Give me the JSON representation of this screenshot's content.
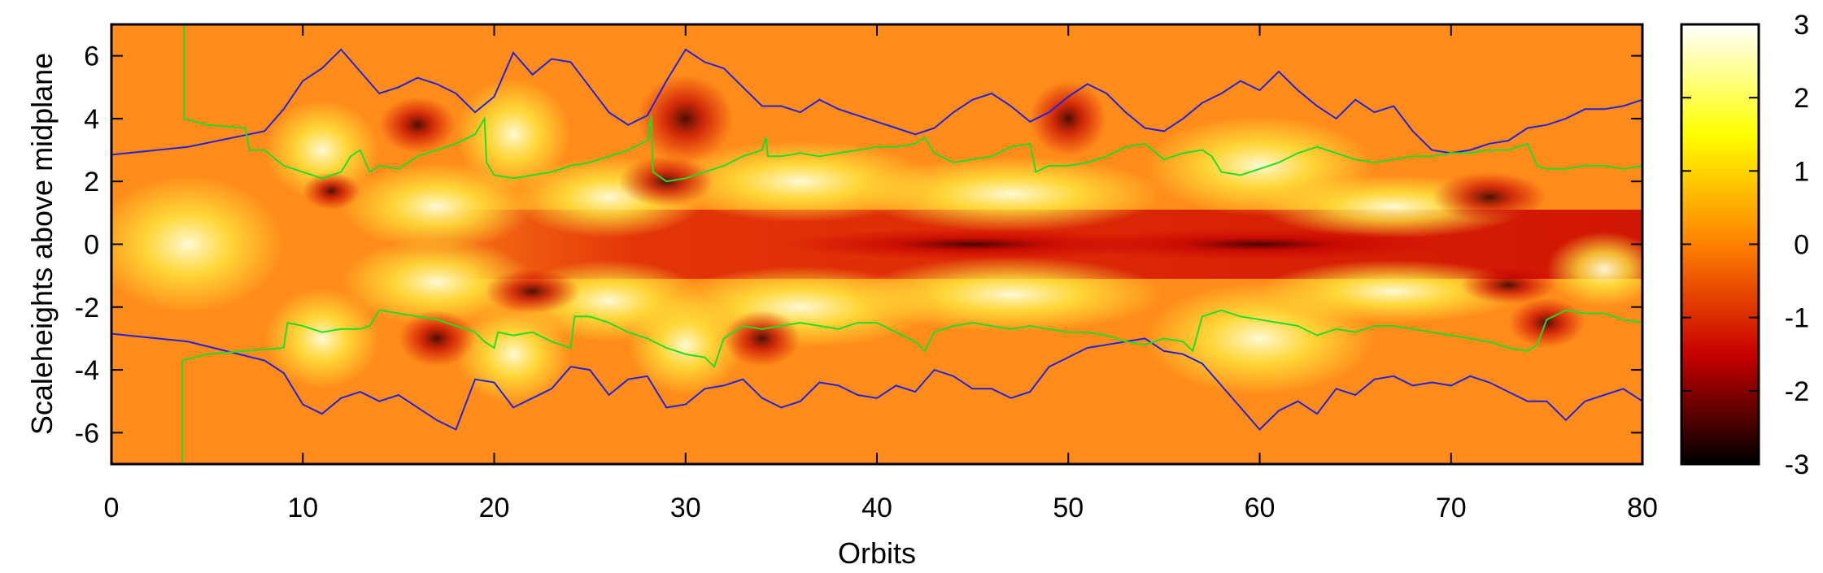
{
  "chart_data": {
    "type": "heatmap",
    "title": "",
    "xlabel": "Orbits",
    "ylabel": "Scaleheights above midplane",
    "xlim": [
      0,
      80
    ],
    "ylim": [
      -7,
      7
    ],
    "x_ticks": [
      "0",
      "10",
      "20",
      "30",
      "40",
      "50",
      "60",
      "70",
      "80"
    ],
    "y_ticks": [
      "6",
      "4",
      "2",
      "0",
      "-2",
      "-4",
      "-6"
    ],
    "colorbar": {
      "range": [
        -3,
        3
      ],
      "ticks": [
        "3",
        "2",
        "1",
        "0",
        "-1",
        "-2",
        "-3"
      ],
      "colormap": [
        "#000000",
        "#c80000",
        "#ff8000",
        "#ffff00",
        "#ffffff"
      ]
    },
    "background_color": "#ff8c1a",
    "series": [
      {
        "color": "#2222dd",
        "upper": [
          [
            0,
            2.85
          ],
          [
            4,
            3.1
          ],
          [
            8,
            3.6
          ],
          [
            9,
            4.3
          ],
          [
            10,
            5.2
          ],
          [
            11,
            5.6
          ],
          [
            12,
            6.2
          ],
          [
            13,
            5.5
          ],
          [
            14,
            4.8
          ],
          [
            15,
            5.0
          ],
          [
            16,
            5.3
          ],
          [
            17,
            5.1
          ],
          [
            18,
            4.8
          ],
          [
            19,
            4.2
          ],
          [
            20,
            4.7
          ],
          [
            21,
            6.1
          ],
          [
            22,
            5.4
          ],
          [
            23,
            5.9
          ],
          [
            24,
            5.8
          ],
          [
            25,
            5.0
          ],
          [
            26,
            4.2
          ],
          [
            27,
            3.8
          ],
          [
            28,
            4.1
          ],
          [
            29,
            5.2
          ],
          [
            30,
            6.2
          ],
          [
            31,
            5.8
          ],
          [
            32,
            5.6
          ],
          [
            33,
            5.0
          ],
          [
            34,
            4.4
          ],
          [
            35,
            4.4
          ],
          [
            36,
            4.2
          ],
          [
            37,
            4.6
          ],
          [
            38,
            4.3
          ],
          [
            39,
            4.1
          ],
          [
            40,
            3.9
          ],
          [
            41,
            3.7
          ],
          [
            42,
            3.5
          ],
          [
            43,
            3.7
          ],
          [
            44,
            4.2
          ],
          [
            45,
            4.6
          ],
          [
            46,
            4.8
          ],
          [
            47,
            4.4
          ],
          [
            48,
            3.9
          ],
          [
            49,
            4.2
          ],
          [
            50,
            4.7
          ],
          [
            51,
            5.1
          ],
          [
            52,
            4.8
          ],
          [
            53,
            4.2
          ],
          [
            54,
            3.7
          ],
          [
            55,
            3.6
          ],
          [
            56,
            4.0
          ],
          [
            57,
            4.5
          ],
          [
            58,
            4.8
          ],
          [
            59,
            5.2
          ],
          [
            60,
            4.9
          ],
          [
            61,
            5.5
          ],
          [
            62,
            4.9
          ],
          [
            63,
            4.4
          ],
          [
            64,
            4.0
          ],
          [
            65,
            4.6
          ],
          [
            66,
            4.2
          ],
          [
            67,
            4.4
          ],
          [
            68,
            3.6
          ],
          [
            69,
            3.0
          ],
          [
            70,
            2.9
          ],
          [
            71,
            3.0
          ],
          [
            72,
            3.2
          ],
          [
            73,
            3.3
          ],
          [
            74,
            3.7
          ],
          [
            75,
            3.8
          ],
          [
            76,
            4.0
          ],
          [
            77,
            4.3
          ],
          [
            78,
            4.3
          ],
          [
            79,
            4.4
          ],
          [
            80,
            4.6
          ]
        ],
        "lower": [
          [
            0,
            -2.85
          ],
          [
            4,
            -3.1
          ],
          [
            8,
            -3.7
          ],
          [
            9,
            -4.1
          ],
          [
            10,
            -5.1
          ],
          [
            11,
            -5.4
          ],
          [
            12,
            -4.9
          ],
          [
            13,
            -4.7
          ],
          [
            14,
            -5.0
          ],
          [
            15,
            -4.8
          ],
          [
            16,
            -5.2
          ],
          [
            17,
            -5.6
          ],
          [
            18,
            -5.9
          ],
          [
            19,
            -4.3
          ],
          [
            20,
            -4.4
          ],
          [
            21,
            -5.2
          ],
          [
            22,
            -4.9
          ],
          [
            23,
            -4.6
          ],
          [
            24,
            -3.9
          ],
          [
            25,
            -4.0
          ],
          [
            26,
            -4.8
          ],
          [
            27,
            -4.3
          ],
          [
            28,
            -4.2
          ],
          [
            29,
            -5.2
          ],
          [
            30,
            -5.1
          ],
          [
            31,
            -4.6
          ],
          [
            32,
            -4.5
          ],
          [
            33,
            -4.3
          ],
          [
            34,
            -4.9
          ],
          [
            35,
            -5.2
          ],
          [
            36,
            -5.0
          ],
          [
            37,
            -4.4
          ],
          [
            38,
            -4.5
          ],
          [
            39,
            -4.8
          ],
          [
            40,
            -4.9
          ],
          [
            41,
            -4.5
          ],
          [
            42,
            -4.7
          ],
          [
            43,
            -4.0
          ],
          [
            44,
            -4.2
          ],
          [
            45,
            -4.6
          ],
          [
            46,
            -4.6
          ],
          [
            47,
            -4.9
          ],
          [
            48,
            -4.7
          ],
          [
            49,
            -3.9
          ],
          [
            50,
            -3.6
          ],
          [
            51,
            -3.3
          ],
          [
            52,
            -3.2
          ],
          [
            53,
            -3.1
          ],
          [
            54,
            -3.0
          ],
          [
            55,
            -3.4
          ],
          [
            56,
            -3.5
          ],
          [
            57,
            -3.8
          ],
          [
            58,
            -4.5
          ],
          [
            59,
            -5.2
          ],
          [
            60,
            -5.9
          ],
          [
            61,
            -5.3
          ],
          [
            62,
            -5.0
          ],
          [
            63,
            -5.4
          ],
          [
            64,
            -4.6
          ],
          [
            65,
            -4.8
          ],
          [
            66,
            -4.3
          ],
          [
            67,
            -4.2
          ],
          [
            68,
            -4.5
          ],
          [
            69,
            -4.4
          ],
          [
            70,
            -4.5
          ],
          [
            71,
            -4.2
          ],
          [
            72,
            -4.4
          ],
          [
            73,
            -4.7
          ],
          [
            74,
            -5.0
          ],
          [
            75,
            -5.0
          ],
          [
            76,
            -5.6
          ],
          [
            77,
            -5.0
          ],
          [
            78,
            -4.8
          ],
          [
            79,
            -4.6
          ],
          [
            80,
            -5.0
          ]
        ]
      },
      {
        "color": "#22dd22",
        "upper": [
          [
            3.8,
            7.0
          ],
          [
            3.8,
            4.0
          ],
          [
            5,
            3.8
          ],
          [
            7,
            3.7
          ],
          [
            7.2,
            3.0
          ],
          [
            8,
            3.0
          ],
          [
            9,
            2.5
          ],
          [
            10,
            2.3
          ],
          [
            11,
            2.1
          ],
          [
            12,
            2.3
          ],
          [
            12.5,
            2.8
          ],
          [
            13,
            3.0
          ],
          [
            13.5,
            2.3
          ],
          [
            14,
            2.5
          ],
          [
            15,
            2.4
          ],
          [
            16,
            2.8
          ],
          [
            17,
            3.0
          ],
          [
            18,
            3.2
          ],
          [
            19,
            3.5
          ],
          [
            19.5,
            4.0
          ],
          [
            19.6,
            2.6
          ],
          [
            20,
            2.2
          ],
          [
            21,
            2.1
          ],
          [
            22,
            2.2
          ],
          [
            23,
            2.3
          ],
          [
            24,
            2.5
          ],
          [
            25,
            2.6
          ],
          [
            26,
            2.8
          ],
          [
            27,
            3.0
          ],
          [
            28,
            3.3
          ],
          [
            28.2,
            4.1
          ],
          [
            28.3,
            2.3
          ],
          [
            29,
            2.0
          ],
          [
            30,
            2.1
          ],
          [
            31,
            2.3
          ],
          [
            32,
            2.5
          ],
          [
            33,
            2.8
          ],
          [
            34,
            3.0
          ],
          [
            34.2,
            3.4
          ],
          [
            34.3,
            2.8
          ],
          [
            35,
            2.8
          ],
          [
            36,
            2.9
          ],
          [
            37,
            2.8
          ],
          [
            38,
            2.9
          ],
          [
            39,
            3.0
          ],
          [
            40,
            3.1
          ],
          [
            41,
            3.1
          ],
          [
            42,
            3.2
          ],
          [
            42.5,
            3.4
          ],
          [
            43,
            2.9
          ],
          [
            44,
            2.6
          ],
          [
            45,
            2.7
          ],
          [
            46,
            2.8
          ],
          [
            47,
            3.1
          ],
          [
            48,
            3.2
          ],
          [
            48.3,
            2.3
          ],
          [
            49,
            2.5
          ],
          [
            50,
            2.5
          ],
          [
            51,
            2.6
          ],
          [
            52,
            2.8
          ],
          [
            53,
            3.1
          ],
          [
            54,
            3.2
          ],
          [
            55,
            2.7
          ],
          [
            56,
            2.9
          ],
          [
            57,
            3.0
          ],
          [
            57.5,
            2.8
          ],
          [
            58,
            2.3
          ],
          [
            59,
            2.2
          ],
          [
            60,
            2.4
          ],
          [
            61,
            2.6
          ],
          [
            62,
            2.9
          ],
          [
            63,
            3.1
          ],
          [
            64,
            2.9
          ],
          [
            65,
            2.7
          ],
          [
            66,
            2.6
          ],
          [
            67,
            2.7
          ],
          [
            68,
            2.8
          ],
          [
            69,
            2.8
          ],
          [
            70,
            2.9
          ],
          [
            71,
            2.9
          ],
          [
            72,
            3.0
          ],
          [
            73,
            3.0
          ],
          [
            74,
            3.2
          ],
          [
            74.5,
            2.5
          ],
          [
            75,
            2.4
          ],
          [
            76,
            2.4
          ],
          [
            77,
            2.5
          ],
          [
            78,
            2.5
          ],
          [
            79,
            2.4
          ],
          [
            80,
            2.5
          ]
        ],
        "lower": [
          [
            3.7,
            -7.0
          ],
          [
            3.7,
            -3.7
          ],
          [
            5,
            -3.5
          ],
          [
            7,
            -3.4
          ],
          [
            9,
            -3.3
          ],
          [
            9.2,
            -2.5
          ],
          [
            10,
            -2.6
          ],
          [
            11,
            -2.8
          ],
          [
            12,
            -2.7
          ],
          [
            13,
            -2.7
          ],
          [
            13.5,
            -2.6
          ],
          [
            14,
            -2.1
          ],
          [
            15,
            -2.2
          ],
          [
            16,
            -2.3
          ],
          [
            17,
            -2.4
          ],
          [
            18,
            -2.6
          ],
          [
            19,
            -2.8
          ],
          [
            19.5,
            -3.1
          ],
          [
            20,
            -3.3
          ],
          [
            20.2,
            -2.8
          ],
          [
            21,
            -2.9
          ],
          [
            22,
            -2.8
          ],
          [
            23,
            -3.1
          ],
          [
            24,
            -3.3
          ],
          [
            24.2,
            -2.3
          ],
          [
            25,
            -2.3
          ],
          [
            26,
            -2.5
          ],
          [
            27,
            -2.8
          ],
          [
            28,
            -3.0
          ],
          [
            29,
            -3.3
          ],
          [
            30,
            -3.5
          ],
          [
            31,
            -3.6
          ],
          [
            31.5,
            -3.9
          ],
          [
            32,
            -3.0
          ],
          [
            33,
            -2.6
          ],
          [
            34,
            -2.7
          ],
          [
            35,
            -2.6
          ],
          [
            36,
            -2.5
          ],
          [
            37,
            -2.6
          ],
          [
            38,
            -2.7
          ],
          [
            39,
            -2.5
          ],
          [
            40,
            -2.5
          ],
          [
            41,
            -2.8
          ],
          [
            42,
            -3.1
          ],
          [
            42.5,
            -3.4
          ],
          [
            43,
            -2.8
          ],
          [
            44,
            -2.6
          ],
          [
            45,
            -2.5
          ],
          [
            46,
            -2.6
          ],
          [
            47,
            -2.7
          ],
          [
            48,
            -2.6
          ],
          [
            49,
            -2.7
          ],
          [
            50,
            -2.8
          ],
          [
            51,
            -2.8
          ],
          [
            52,
            -2.9
          ],
          [
            53,
            -3.1
          ],
          [
            54,
            -3.2
          ],
          [
            55,
            -3.0
          ],
          [
            56,
            -3.1
          ],
          [
            56.5,
            -3.4
          ],
          [
            57,
            -2.3
          ],
          [
            58,
            -2.1
          ],
          [
            59,
            -2.3
          ],
          [
            60,
            -2.4
          ],
          [
            61,
            -2.5
          ],
          [
            62,
            -2.6
          ],
          [
            63,
            -2.9
          ],
          [
            64,
            -2.7
          ],
          [
            65,
            -2.8
          ],
          [
            66,
            -2.6
          ],
          [
            67,
            -2.6
          ],
          [
            68,
            -2.7
          ],
          [
            69,
            -2.8
          ],
          [
            70,
            -2.9
          ],
          [
            71,
            -3.0
          ],
          [
            72,
            -3.1
          ],
          [
            73,
            -3.3
          ],
          [
            74,
            -3.4
          ],
          [
            74.5,
            -3.2
          ],
          [
            75,
            -2.4
          ],
          [
            76,
            -2.1
          ],
          [
            77,
            -2.2
          ],
          [
            78,
            -2.2
          ],
          [
            79,
            -2.4
          ],
          [
            80,
            -2.5
          ]
        ]
      }
    ]
  }
}
